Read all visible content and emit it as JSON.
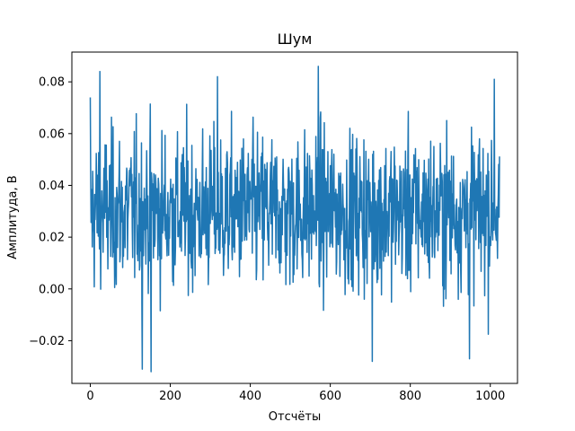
{
  "chart_data": {
    "type": "line",
    "title": "Шум",
    "xlabel": "Отсчёты",
    "ylabel": "Амплитуда, В",
    "xlim": [
      -46,
      1068
    ],
    "ylim": [
      -0.0365,
      0.0915
    ],
    "xticks": [
      0,
      200,
      400,
      600,
      800,
      1000
    ],
    "xtick_labels": [
      "0",
      "200",
      "400",
      "600",
      "800",
      "1000"
    ],
    "yticks": [
      -0.02,
      0.0,
      0.02,
      0.04,
      0.06,
      0.08
    ],
    "ytick_labels": [
      "−0.02",
      "0.00",
      "0.02",
      "0.04",
      "0.06",
      "0.08"
    ],
    "grid": false,
    "series": [
      {
        "color": "#1f77b4",
        "n_points": 1024,
        "x_start": 0,
        "x_end": 1023,
        "mean": 0.03,
        "std": 0.015,
        "peaks": [
          {
            "x": 0,
            "y": 0.074
          },
          {
            "x": 24,
            "y": 0.084
          },
          {
            "x": 130,
            "y": -0.031
          },
          {
            "x": 152,
            "y": -0.032
          },
          {
            "x": 318,
            "y": 0.082
          },
          {
            "x": 570,
            "y": 0.086
          },
          {
            "x": 705,
            "y": -0.028
          },
          {
            "x": 948,
            "y": -0.027
          },
          {
            "x": 1010,
            "y": 0.081
          }
        ]
      }
    ]
  }
}
